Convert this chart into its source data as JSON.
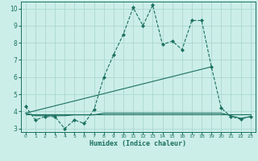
{
  "xlabel": "Humidex (Indice chaleur)",
  "bg_color": "#cceee8",
  "grid_color": "#aad8d0",
  "line_color": "#1a7060",
  "xlim": [
    -0.5,
    23.5
  ],
  "ylim": [
    2.8,
    10.4
  ],
  "yticks": [
    3,
    4,
    5,
    6,
    7,
    8,
    9,
    10
  ],
  "xticks": [
    0,
    1,
    2,
    3,
    4,
    5,
    6,
    7,
    8,
    9,
    10,
    11,
    12,
    13,
    14,
    15,
    16,
    17,
    18,
    19,
    20,
    21,
    22,
    23
  ],
  "series1_x": [
    0,
    1,
    2,
    3,
    4,
    5,
    6,
    7,
    8,
    9,
    10,
    11,
    12,
    13,
    14,
    15,
    16,
    17,
    18,
    19,
    20,
    21,
    22,
    23
  ],
  "series1_y": [
    4.3,
    3.5,
    3.7,
    3.7,
    3.0,
    3.5,
    3.3,
    4.1,
    6.0,
    7.3,
    8.5,
    10.05,
    9.0,
    10.2,
    7.9,
    8.1,
    7.6,
    9.3,
    9.3,
    6.6,
    4.2,
    3.7,
    3.55,
    3.7
  ],
  "series2_x": [
    0,
    1,
    2,
    3,
    4,
    5,
    6,
    7,
    8,
    9,
    10,
    11,
    12,
    13,
    14,
    15,
    16,
    17,
    18,
    19,
    20,
    21,
    22,
    23
  ],
  "series2_y": [
    3.9,
    3.75,
    3.75,
    3.75,
    3.75,
    3.8,
    3.8,
    3.8,
    3.9,
    3.9,
    3.9,
    3.9,
    3.9,
    3.9,
    3.9,
    3.9,
    3.9,
    3.9,
    3.9,
    3.9,
    3.9,
    3.75,
    3.6,
    3.7
  ],
  "series3_x": [
    0,
    19
  ],
  "series3_y": [
    3.9,
    6.6
  ],
  "series4_x": [
    0,
    23
  ],
  "series4_y": [
    3.85,
    3.85
  ]
}
